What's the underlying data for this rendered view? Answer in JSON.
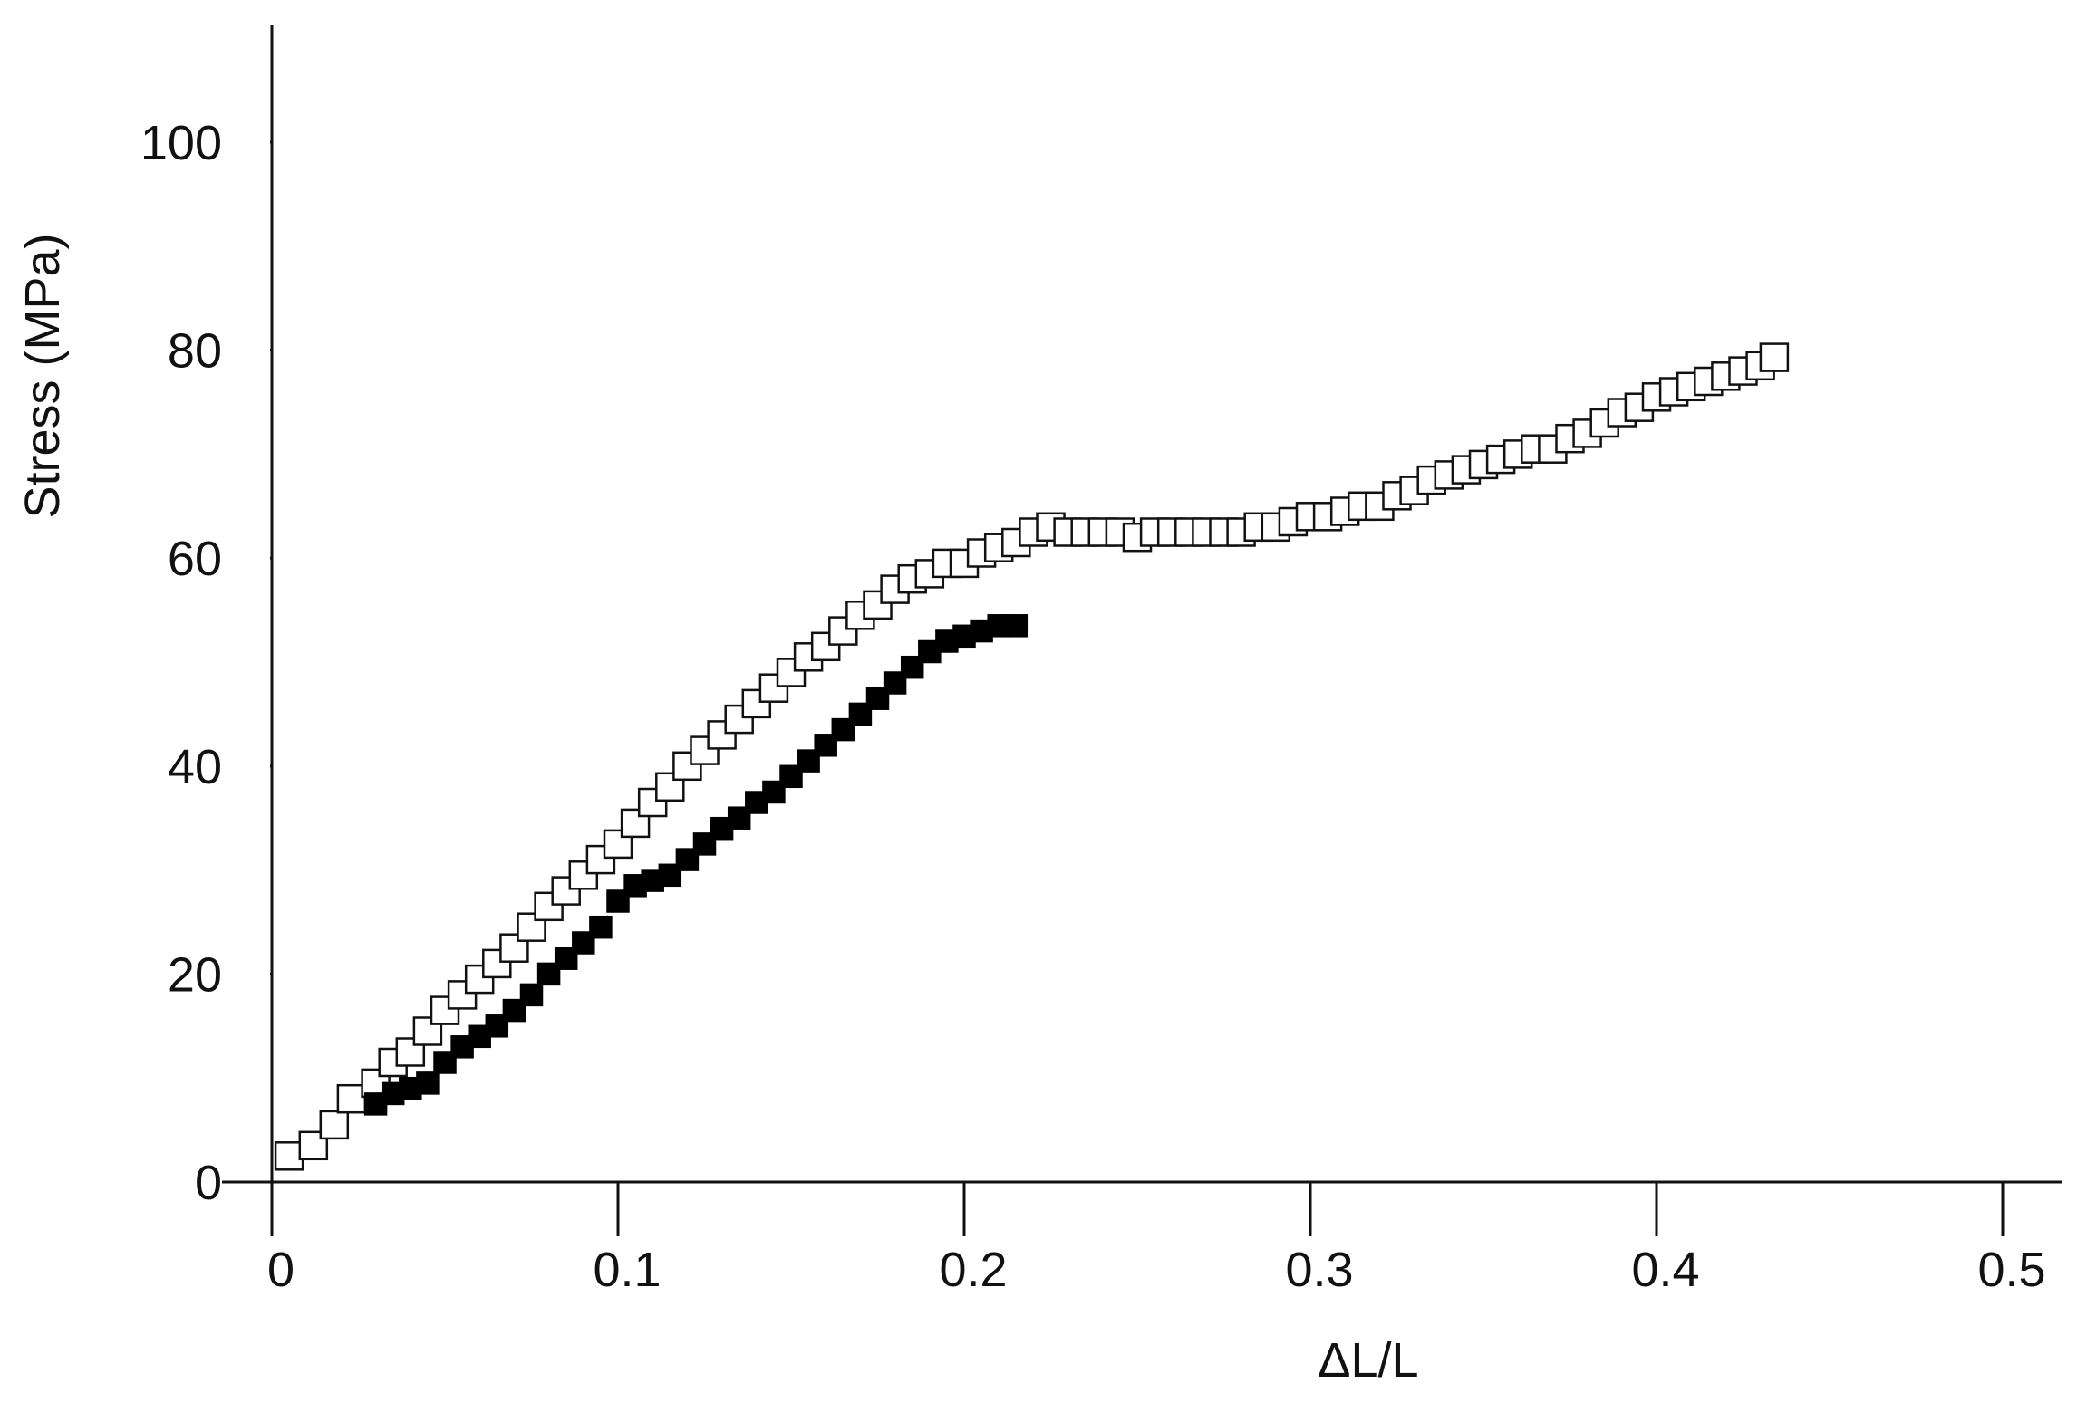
{
  "chart_data": {
    "type": "scatter",
    "title": "",
    "xlabel": "ΔL/L",
    "ylabel": "Stress (MPa)",
    "xlim": [
      0,
      0.51
    ],
    "ylim": [
      0,
      110
    ],
    "x_ticks": [
      "0",
      "0.1",
      "0.2",
      "0.3",
      "0.4",
      "0.5"
    ],
    "y_ticks": [
      "0",
      "20",
      "40",
      "60",
      "80",
      "100"
    ],
    "grid": false,
    "legend": "none",
    "series": [
      {
        "marker": "open-square",
        "color": "#111111",
        "x": [
          0.005,
          0.012,
          0.018,
          0.023,
          0.03,
          0.035,
          0.04,
          0.045,
          0.05,
          0.055,
          0.06,
          0.065,
          0.07,
          0.075,
          0.08,
          0.085,
          0.09,
          0.095,
          0.1,
          0.105,
          0.11,
          0.115,
          0.12,
          0.125,
          0.13,
          0.135,
          0.14,
          0.145,
          0.15,
          0.155,
          0.16,
          0.165,
          0.17,
          0.175,
          0.18,
          0.185,
          0.19,
          0.195,
          0.2,
          0.205,
          0.21,
          0.215,
          0.22,
          0.225,
          0.23,
          0.235,
          0.24,
          0.245,
          0.25,
          0.255,
          0.26,
          0.265,
          0.27,
          0.275,
          0.28,
          0.285,
          0.29,
          0.295,
          0.3,
          0.305,
          0.31,
          0.315,
          0.32,
          0.325,
          0.33,
          0.335,
          0.34,
          0.345,
          0.35,
          0.355,
          0.36,
          0.365,
          0.37,
          0.375,
          0.38,
          0.385,
          0.39,
          0.395,
          0.4,
          0.405,
          0.41,
          0.415,
          0.42,
          0.425,
          0.43,
          0.434
        ],
        "y": [
          2.5,
          3.5,
          5.5,
          8.0,
          9.5,
          11.5,
          12.5,
          14.5,
          16.5,
          18,
          19.5,
          21,
          22.5,
          24.5,
          26.5,
          28,
          29.5,
          31,
          32.5,
          34.5,
          36.5,
          38,
          40,
          41.5,
          43,
          44.5,
          46,
          47.5,
          49,
          50.5,
          51.5,
          53,
          54.5,
          55.5,
          57,
          58,
          58.5,
          59.5,
          59.5,
          60.5,
          61,
          61.5,
          62.5,
          63,
          62.5,
          62.5,
          62.5,
          62.5,
          62,
          62.5,
          62.5,
          62.5,
          62.5,
          62.5,
          62.5,
          63,
          63,
          63.5,
          64,
          64,
          64.5,
          65,
          65,
          66,
          66.5,
          67.5,
          68,
          68.5,
          69,
          69.5,
          70,
          70.5,
          70.5,
          71.5,
          72,
          73,
          74,
          74.5,
          75.5,
          76,
          76.5,
          77,
          77.5,
          78,
          78.5,
          79.3
        ]
      },
      {
        "marker": "filled-square",
        "color": "#000000",
        "x": [
          0.03,
          0.035,
          0.04,
          0.045,
          0.05,
          0.055,
          0.06,
          0.065,
          0.07,
          0.075,
          0.08,
          0.085,
          0.09,
          0.095,
          0.1,
          0.105,
          0.11,
          0.115,
          0.12,
          0.125,
          0.13,
          0.135,
          0.14,
          0.145,
          0.15,
          0.155,
          0.16,
          0.165,
          0.17,
          0.175,
          0.18,
          0.185,
          0.19,
          0.195,
          0.2,
          0.205,
          0.21,
          0.215
        ],
        "y": [
          7.5,
          8.5,
          9.0,
          9.5,
          11.5,
          13.0,
          14.0,
          15.0,
          16.5,
          18.0,
          20.0,
          21.5,
          23.0,
          24.5,
          27.0,
          28.5,
          29.0,
          29.5,
          31.0,
          32.5,
          34.0,
          35.0,
          36.5,
          37.5,
          39.0,
          40.5,
          42.0,
          43.5,
          45.0,
          46.5,
          48.0,
          49.5,
          51.0,
          52.0,
          52.5,
          53.0,
          53.5,
          53.5
        ]
      }
    ]
  }
}
